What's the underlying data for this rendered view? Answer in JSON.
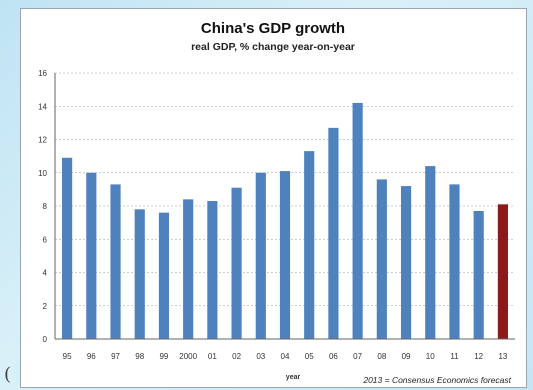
{
  "chart_data": {
    "type": "bar",
    "title": "China's GDP growth",
    "subtitle": "real GDP, % change year-on-year",
    "xlabel": "year",
    "ylabel": "",
    "categories": [
      "95",
      "96",
      "97",
      "98",
      "99",
      "2000",
      "01",
      "02",
      "03",
      "04",
      "05",
      "06",
      "07",
      "08",
      "09",
      "10",
      "11",
      "12",
      "13"
    ],
    "values": [
      10.9,
      10.0,
      9.3,
      7.8,
      7.6,
      8.4,
      8.3,
      9.1,
      10.0,
      10.1,
      11.3,
      12.7,
      14.2,
      9.6,
      9.2,
      10.4,
      9.3,
      7.7,
      8.1
    ],
    "ylim": [
      0,
      16
    ],
    "yticks": [
      0,
      2,
      4,
      6,
      8,
      10,
      12,
      14,
      16
    ],
    "grid": true,
    "forecast_category": "13",
    "annotation": "2013 = Consensus Economics forecast",
    "colors": {
      "actual": "#4f81bd",
      "forecast": "#8b1a1a",
      "grid": "#9aa0a6"
    }
  },
  "edge_glyph": "("
}
